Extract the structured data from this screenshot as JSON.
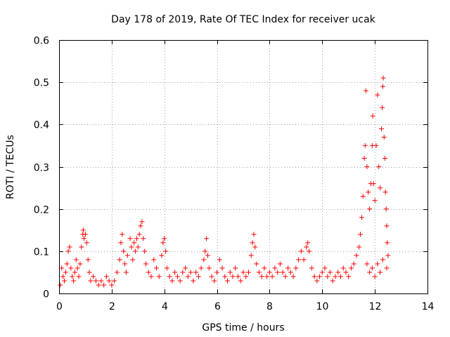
{
  "chart_data": {
    "type": "scatter",
    "title": "Day 178 of 2019, Rate Of TEC Index for receiver ucak",
    "xlabel": "GPS time / hours",
    "ylabel": "ROTI / TECUs",
    "xlim": [
      0,
      14
    ],
    "ylim": [
      0,
      0.6
    ],
    "xticks": [
      0,
      2,
      4,
      6,
      8,
      10,
      12,
      14
    ],
    "xtick_labels": [
      "0",
      "2",
      "4",
      "6",
      "8",
      "10",
      "12",
      "14"
    ],
    "yticks": [
      0,
      0.1,
      0.2,
      0.3,
      0.4,
      0.5,
      0.6
    ],
    "ytick_labels": [
      "0",
      "0.1",
      "0.2",
      "0.3",
      "0.4",
      "0.5",
      "0.6"
    ],
    "grid": true,
    "legend": "none",
    "marker": "plus",
    "color": "#ff0000",
    "series": [
      {
        "points": [
          [
            0.05,
            0.02
          ],
          [
            0.1,
            0.06
          ],
          [
            0.15,
            0.04
          ],
          [
            0.2,
            0.03
          ],
          [
            0.25,
            0.05
          ],
          [
            0.3,
            0.07
          ],
          [
            0.35,
            0.1
          ],
          [
            0.4,
            0.11
          ],
          [
            0.45,
            0.06
          ],
          [
            0.5,
            0.04
          ],
          [
            0.55,
            0.03
          ],
          [
            0.6,
            0.05
          ],
          [
            0.65,
            0.08
          ],
          [
            0.7,
            0.06
          ],
          [
            0.75,
            0.04
          ],
          [
            0.8,
            0.07
          ],
          [
            0.85,
            0.11
          ],
          [
            0.9,
            0.14
          ],
          [
            0.92,
            0.15
          ],
          [
            0.95,
            0.13
          ],
          [
            1.0,
            0.14
          ],
          [
            1.05,
            0.12
          ],
          [
            1.1,
            0.08
          ],
          [
            1.15,
            0.05
          ],
          [
            1.2,
            0.03
          ],
          [
            1.3,
            0.04
          ],
          [
            1.4,
            0.03
          ],
          [
            1.5,
            0.02
          ],
          [
            1.6,
            0.03
          ],
          [
            1.7,
            0.02
          ],
          [
            1.8,
            0.04
          ],
          [
            1.9,
            0.03
          ],
          [
            2.0,
            0.02
          ],
          [
            2.1,
            0.03
          ],
          [
            2.2,
            0.05
          ],
          [
            2.3,
            0.08
          ],
          [
            2.35,
            0.12
          ],
          [
            2.4,
            0.14
          ],
          [
            2.45,
            0.1
          ],
          [
            2.5,
            0.07
          ],
          [
            2.55,
            0.05
          ],
          [
            2.6,
            0.09
          ],
          [
            2.7,
            0.13
          ],
          [
            2.75,
            0.11
          ],
          [
            2.8,
            0.08
          ],
          [
            2.85,
            0.12
          ],
          [
            2.9,
            0.1
          ],
          [
            2.95,
            0.13
          ],
          [
            3.0,
            0.11
          ],
          [
            3.05,
            0.14
          ],
          [
            3.1,
            0.16
          ],
          [
            3.15,
            0.17
          ],
          [
            3.2,
            0.13
          ],
          [
            3.25,
            0.1
          ],
          [
            3.3,
            0.07
          ],
          [
            3.4,
            0.05
          ],
          [
            3.5,
            0.04
          ],
          [
            3.6,
            0.08
          ],
          [
            3.7,
            0.06
          ],
          [
            3.8,
            0.04
          ],
          [
            3.9,
            0.09
          ],
          [
            3.95,
            0.12
          ],
          [
            4.0,
            0.13
          ],
          [
            4.05,
            0.1
          ],
          [
            4.1,
            0.06
          ],
          [
            4.2,
            0.04
          ],
          [
            4.3,
            0.03
          ],
          [
            4.4,
            0.05
          ],
          [
            4.5,
            0.04
          ],
          [
            4.6,
            0.03
          ],
          [
            4.7,
            0.05
          ],
          [
            4.8,
            0.06
          ],
          [
            4.9,
            0.04
          ],
          [
            5.0,
            0.05
          ],
          [
            5.1,
            0.03
          ],
          [
            5.2,
            0.05
          ],
          [
            5.3,
            0.04
          ],
          [
            5.4,
            0.06
          ],
          [
            5.5,
            0.08
          ],
          [
            5.55,
            0.1
          ],
          [
            5.6,
            0.13
          ],
          [
            5.65,
            0.09
          ],
          [
            5.7,
            0.06
          ],
          [
            5.8,
            0.04
          ],
          [
            5.9,
            0.03
          ],
          [
            6.0,
            0.05
          ],
          [
            6.1,
            0.08
          ],
          [
            6.2,
            0.06
          ],
          [
            6.3,
            0.04
          ],
          [
            6.4,
            0.03
          ],
          [
            6.5,
            0.05
          ],
          [
            6.6,
            0.04
          ],
          [
            6.7,
            0.06
          ],
          [
            6.8,
            0.04
          ],
          [
            6.9,
            0.03
          ],
          [
            7.0,
            0.05
          ],
          [
            7.1,
            0.04
          ],
          [
            7.2,
            0.05
          ],
          [
            7.3,
            0.09
          ],
          [
            7.35,
            0.12
          ],
          [
            7.4,
            0.14
          ],
          [
            7.45,
            0.11
          ],
          [
            7.5,
            0.07
          ],
          [
            7.6,
            0.05
          ],
          [
            7.7,
            0.04
          ],
          [
            7.8,
            0.06
          ],
          [
            7.9,
            0.04
          ],
          [
            8.0,
            0.05
          ],
          [
            8.1,
            0.04
          ],
          [
            8.2,
            0.06
          ],
          [
            8.3,
            0.05
          ],
          [
            8.4,
            0.07
          ],
          [
            8.5,
            0.05
          ],
          [
            8.6,
            0.04
          ],
          [
            8.7,
            0.06
          ],
          [
            8.8,
            0.05
          ],
          [
            8.9,
            0.04
          ],
          [
            9.0,
            0.06
          ],
          [
            9.1,
            0.08
          ],
          [
            9.2,
            0.1
          ],
          [
            9.3,
            0.08
          ],
          [
            9.4,
            0.11
          ],
          [
            9.45,
            0.12
          ],
          [
            9.5,
            0.1
          ],
          [
            9.6,
            0.06
          ],
          [
            9.7,
            0.04
          ],
          [
            9.8,
            0.03
          ],
          [
            9.9,
            0.04
          ],
          [
            10.0,
            0.05
          ],
          [
            10.1,
            0.06
          ],
          [
            10.2,
            0.04
          ],
          [
            10.3,
            0.05
          ],
          [
            10.4,
            0.03
          ],
          [
            10.5,
            0.04
          ],
          [
            10.6,
            0.05
          ],
          [
            10.7,
            0.04
          ],
          [
            10.8,
            0.06
          ],
          [
            10.9,
            0.05
          ],
          [
            11.0,
            0.04
          ],
          [
            11.1,
            0.06
          ],
          [
            11.2,
            0.07
          ],
          [
            11.3,
            0.09
          ],
          [
            11.4,
            0.11
          ],
          [
            11.45,
            0.14
          ],
          [
            11.5,
            0.18
          ],
          [
            11.55,
            0.23
          ],
          [
            11.6,
            0.32
          ],
          [
            11.63,
            0.35
          ],
          [
            11.66,
            0.48
          ],
          [
            11.7,
            0.3
          ],
          [
            11.75,
            0.24
          ],
          [
            11.8,
            0.2
          ],
          [
            11.85,
            0.26
          ],
          [
            11.9,
            0.35
          ],
          [
            11.92,
            0.42
          ],
          [
            11.95,
            0.26
          ],
          [
            12.0,
            0.22
          ],
          [
            12.05,
            0.35
          ],
          [
            12.1,
            0.47
          ],
          [
            12.15,
            0.3
          ],
          [
            12.2,
            0.25
          ],
          [
            12.25,
            0.39
          ],
          [
            12.28,
            0.44
          ],
          [
            12.3,
            0.49
          ],
          [
            12.32,
            0.51
          ],
          [
            12.35,
            0.37
          ],
          [
            12.38,
            0.32
          ],
          [
            12.4,
            0.24
          ],
          [
            12.43,
            0.2
          ],
          [
            12.45,
            0.16
          ],
          [
            12.47,
            0.12
          ],
          [
            12.5,
            0.09
          ],
          [
            12.45,
            0.06
          ],
          [
            12.3,
            0.08
          ],
          [
            12.2,
            0.05
          ],
          [
            12.1,
            0.07
          ],
          [
            12.0,
            0.04
          ],
          [
            11.9,
            0.06
          ],
          [
            11.8,
            0.05
          ],
          [
            11.7,
            0.07
          ]
        ]
      }
    ]
  }
}
